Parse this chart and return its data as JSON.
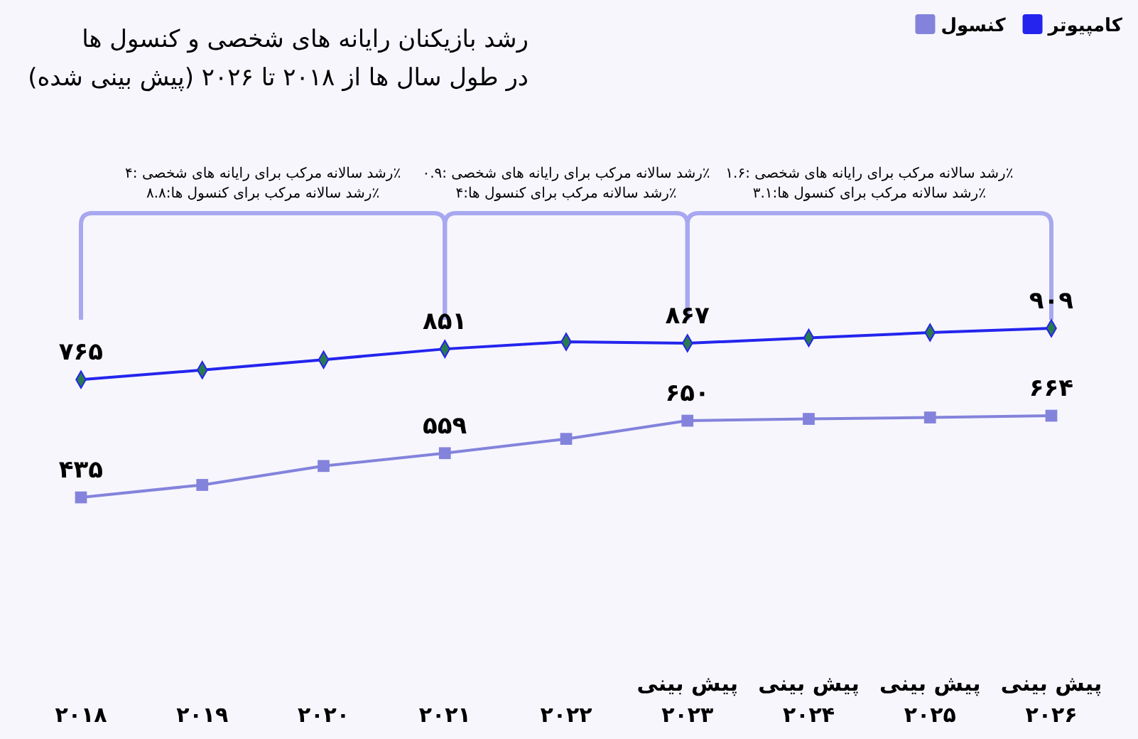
{
  "chart_data": {
    "type": "line",
    "title": "رشد بازیکنان رایانه های شخصی و کنسول ها",
    "subtitle": "در طول سال ها از ۲۰۱۸  تا ۲۰۲۶ (پیش بینی شده)",
    "categories": [
      "۲۰۱۸",
      "۲۰۱۹",
      "۲۰۲۰",
      "۲۰۲۱",
      "۲۰۲۲",
      "پیش بینی\n۲۰۲۳",
      "پیش بینی\n۲۰۲۴",
      "پیش بینی\n۲۰۲۵",
      "پیش بینی\n۲۰۲۶"
    ],
    "series": [
      {
        "name": "کامپیوتر",
        "color": "#2424ee",
        "marker": "diamond",
        "values": [
          765,
          792,
          821,
          851,
          871,
          867,
          882,
          897,
          909
        ],
        "value_labels": [
          "۷۶۵",
          null,
          null,
          "۸۵۱",
          null,
          "۸۶۷",
          null,
          null,
          "۹۰۹"
        ]
      },
      {
        "name": "کنسول",
        "color": "#8383dc",
        "marker": "square",
        "values": [
          435,
          470,
          523,
          559,
          599,
          650,
          655,
          659,
          664
        ],
        "value_labels": [
          "۴۳۵",
          null,
          null,
          "۵۵۹",
          null,
          "۶۵۰",
          null,
          null,
          "۶۶۴"
        ]
      }
    ],
    "tick_labels": "x",
    "grid": false,
    "legend": "top right",
    "annotations": [
      "رشد سالانه مرکب برای رایانه های شخصی :۴٪\nرشد سالانه مرکب برای کنسول ها:۸.۸٪",
      "رشد سالانه مرکب برای رایانه های شخصی :۰.۹٪\nرشد سالانه مرکب برای کنسول ها:۴٪",
      "رشد سالانه مرکب برای رایانه های شخصی :۱.۶٪\nرشد سالانه مرکب برای کنسول ها:۳.۱٪"
    ]
  }
}
